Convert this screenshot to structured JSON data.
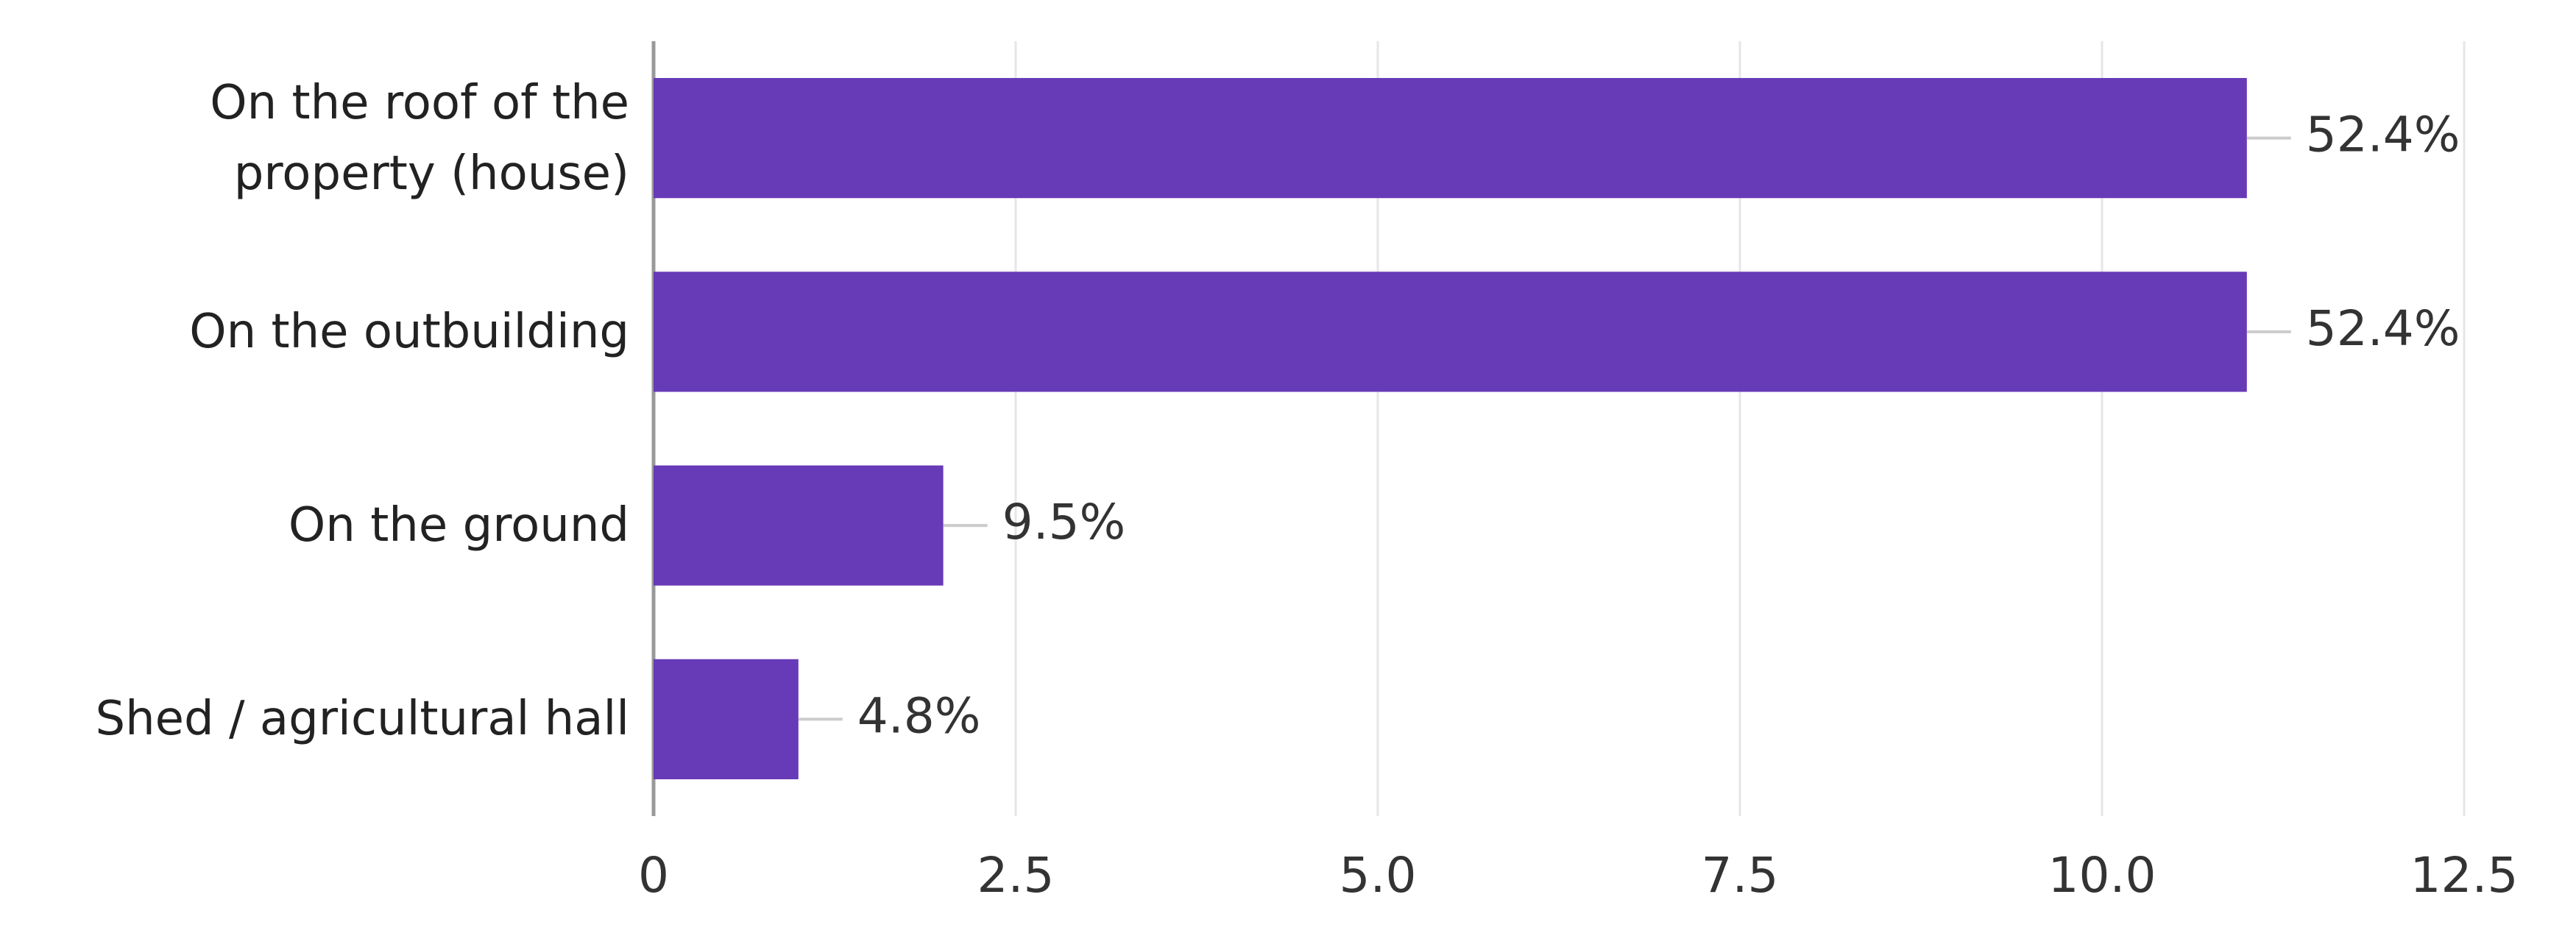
{
  "chart_data": {
    "type": "bar",
    "orientation": "horizontal",
    "categories": [
      "On the roof of the property (house)",
      "On the outbuilding",
      "On the ground",
      "Shed / agricultural hall"
    ],
    "values": [
      11,
      11,
      2,
      1
    ],
    "shares": [
      52.4,
      52.4,
      9.5,
      4.8
    ],
    "share_labels": [
      "52.4%",
      "52.4%",
      "9.5%",
      "4.8%"
    ],
    "color": "#673ab7",
    "xlim": [
      0,
      12.5
    ],
    "xticks": [
      0,
      2.5,
      {
        "value": 5,
        "label": "5.0"
      },
      7.5,
      {
        "value": 10,
        "label": "10.0"
      },
      12.5
    ],
    "grid": true
  }
}
